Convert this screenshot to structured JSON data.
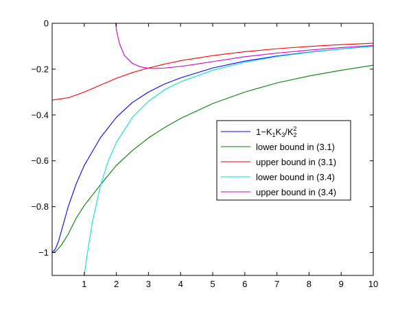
{
  "chart_data": {
    "type": "line",
    "title": "",
    "xlabel": "",
    "ylabel": "",
    "xlim": [
      0,
      10
    ],
    "ylim": [
      -1.1,
      0
    ],
    "grid": false,
    "legend_position": "center-right",
    "x_ticks": [
      1,
      2,
      3,
      4,
      5,
      6,
      7,
      8,
      9,
      10
    ],
    "x_tick_labels": [
      "1",
      "2",
      "3",
      "4",
      "5",
      "6",
      "7",
      "8",
      "9",
      "10"
    ],
    "y_ticks": [
      0,
      -0.2,
      -0.4,
      -0.6,
      -0.8,
      -1
    ],
    "y_tick_labels": [
      "0",
      "−0.2",
      "−0.4",
      "−0.6",
      "−0.8",
      "−1"
    ],
    "series": [
      {
        "name": "1−K1K3/K2^2",
        "legend_parts": [
          "1−K",
          "1",
          "K",
          "3",
          "/K",
          "2",
          "2"
        ],
        "color": "#0000ff",
        "x": [
          0.0,
          0.1,
          0.2,
          0.3,
          0.5,
          0.75,
          1.0,
          1.5,
          2.0,
          2.5,
          3.0,
          3.5,
          4.0,
          5.0,
          6.0,
          7.0,
          8.0,
          9.0,
          10.0
        ],
        "y": [
          -1.0,
          -0.985,
          -0.95,
          -0.9,
          -0.8,
          -0.7,
          -0.62,
          -0.5,
          -0.41,
          -0.345,
          -0.3,
          -0.265,
          -0.238,
          -0.195,
          -0.165,
          -0.143,
          -0.126,
          -0.112,
          -0.1
        ]
      },
      {
        "name": "lower bound in (3.1)",
        "color": "#008000",
        "x": [
          0.0,
          0.05,
          0.15,
          0.3,
          0.5,
          0.75,
          1.0,
          1.25,
          1.5,
          2.0,
          2.5,
          3.0,
          3.5,
          4.0,
          5.0,
          6.0,
          7.0,
          8.0,
          9.0,
          10.0
        ],
        "y": [
          -1.0,
          -1.0,
          -0.99,
          -0.965,
          -0.92,
          -0.85,
          -0.795,
          -0.75,
          -0.705,
          -0.62,
          -0.555,
          -0.5,
          -0.455,
          -0.415,
          -0.35,
          -0.3,
          -0.26,
          -0.23,
          -0.205,
          -0.183
        ]
      },
      {
        "name": "upper bound in (3.1)",
        "color": "#ff0000",
        "x": [
          0.0,
          0.5,
          1.0,
          1.5,
          2.0,
          2.5,
          3.0,
          3.5,
          4.0,
          5.0,
          6.0,
          7.0,
          8.0,
          9.0,
          10.0
        ],
        "y": [
          -0.335,
          -0.325,
          -0.3,
          -0.27,
          -0.24,
          -0.215,
          -0.195,
          -0.178,
          -0.163,
          -0.141,
          -0.124,
          -0.111,
          -0.101,
          -0.093,
          -0.087
        ]
      },
      {
        "name": "lower bound in (3.4)",
        "color": "#00e5d0",
        "x": [
          1.0,
          1.1,
          1.25,
          1.5,
          1.75,
          2.0,
          2.5,
          3.0,
          3.5,
          4.0,
          5.0,
          6.0,
          7.0,
          8.0,
          9.0,
          10.0
        ],
        "y": [
          -1.1,
          -1.0,
          -0.87,
          -0.71,
          -0.6,
          -0.52,
          -0.41,
          -0.34,
          -0.29,
          -0.255,
          -0.205,
          -0.17,
          -0.145,
          -0.127,
          -0.112,
          -0.1
        ]
      },
      {
        "name": "upper bound in (3.4)",
        "color": "#cc00cc",
        "x": [
          1.98,
          2.0,
          2.1,
          2.25,
          2.5,
          2.75,
          3.0,
          3.25,
          3.5,
          4.0,
          4.5,
          5.0,
          6.0,
          7.0,
          8.0,
          9.0,
          10.0
        ],
        "y": [
          0.0,
          -0.03,
          -0.09,
          -0.14,
          -0.175,
          -0.19,
          -0.196,
          -0.197,
          -0.195,
          -0.188,
          -0.178,
          -0.167,
          -0.146,
          -0.13,
          -0.117,
          -0.106,
          -0.097
        ]
      }
    ]
  }
}
